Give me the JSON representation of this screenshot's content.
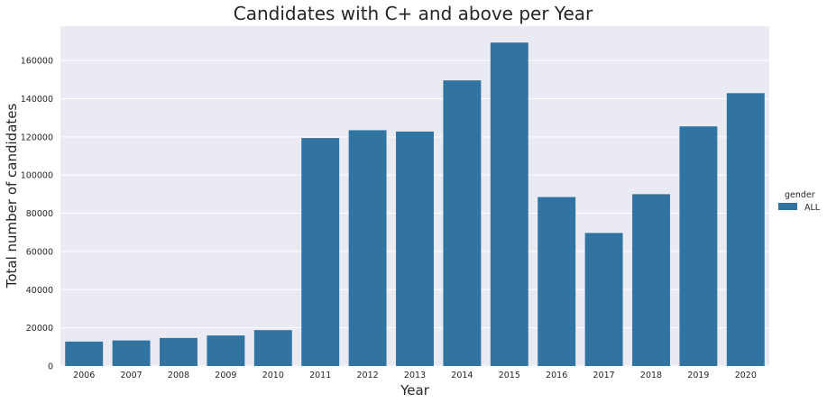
{
  "chart_data": {
    "type": "bar",
    "title": "Candidates with C+ and above per Year",
    "xlabel": "Year",
    "ylabel": "Total number of candidates",
    "categories": [
      "2006",
      "2007",
      "2008",
      "2009",
      "2010",
      "2011",
      "2012",
      "2013",
      "2014",
      "2015",
      "2016",
      "2017",
      "2018",
      "2019",
      "2020"
    ],
    "series": [
      {
        "name": "ALL",
        "color": "#3274a1",
        "values": [
          12800,
          13400,
          14700,
          16000,
          18800,
          119400,
          123500,
          122800,
          149600,
          169400,
          88500,
          69700,
          90000,
          125500,
          142900
        ]
      }
    ],
    "ylim": [
      0,
      178000
    ],
    "yticks": [
      0,
      20000,
      40000,
      60000,
      80000,
      100000,
      120000,
      140000,
      160000
    ],
    "grid": true,
    "legend": {
      "title": "gender",
      "placement": "right"
    },
    "background_color": "#eaeaf2"
  }
}
